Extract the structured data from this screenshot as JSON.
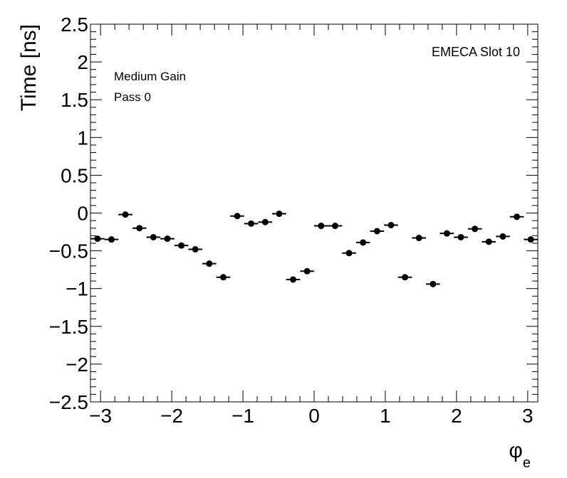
{
  "chart_data": {
    "type": "scatter",
    "xlabel_main": "φ",
    "xlabel_sub": "e",
    "ylabel": "Time [ns]",
    "annotations": [
      "Medium Gain",
      "Pass 0",
      "EMECA Slot 10"
    ],
    "xlim": [
      -3.14159,
      3.14159
    ],
    "ylim": [
      -2.5,
      2.5
    ],
    "xticks": [
      {
        "v": -3,
        "label": "−3"
      },
      {
        "v": -2,
        "label": "−2"
      },
      {
        "v": -1,
        "label": "−1"
      },
      {
        "v": 0,
        "label": "0"
      },
      {
        "v": 1,
        "label": "1"
      },
      {
        "v": 2,
        "label": "2"
      },
      {
        "v": 3,
        "label": "3"
      }
    ],
    "yticks": [
      {
        "v": 2.5,
        "label": "2.5"
      },
      {
        "v": 2,
        "label": "2"
      },
      {
        "v": 1.5,
        "label": "1.5"
      },
      {
        "v": 1,
        "label": "1"
      },
      {
        "v": 0.5,
        "label": "0.5"
      },
      {
        "v": 0,
        "label": "0"
      },
      {
        "v": -0.5,
        "label": "−0.5"
      },
      {
        "v": -1,
        "label": "−1"
      },
      {
        "v": -1.5,
        "label": "−1.5"
      },
      {
        "v": -2,
        "label": "−2"
      },
      {
        "v": -2.5,
        "label": "−2.5"
      }
    ],
    "bin_half_width": 0.0982,
    "series": [
      {
        "x": [
          -3.043,
          -2.847,
          -2.651,
          -2.454,
          -2.258,
          -2.061,
          -1.865,
          -1.669,
          -1.473,
          -1.276,
          -1.08,
          -0.884,
          -0.687,
          -0.491,
          -0.295,
          -0.098,
          0.098,
          0.295,
          0.491,
          0.687,
          0.884,
          1.08,
          1.276,
          1.473,
          1.669,
          1.865,
          2.061,
          2.258,
          2.454,
          2.651,
          2.847,
          3.043
        ],
        "y": [
          -0.34,
          -0.35,
          -0.02,
          -0.2,
          -0.32,
          -0.34,
          -0.43,
          -0.48,
          -0.67,
          -0.85,
          -0.04,
          -0.14,
          -0.12,
          -0.01,
          -0.88,
          -0.77,
          -0.17,
          -0.17,
          -0.53,
          -0.39,
          -0.24,
          -0.16,
          -0.85,
          -0.33,
          -0.94,
          -0.27,
          -0.32,
          -0.21,
          -0.38,
          -0.31,
          -0.05,
          -0.35
        ]
      }
    ]
  }
}
